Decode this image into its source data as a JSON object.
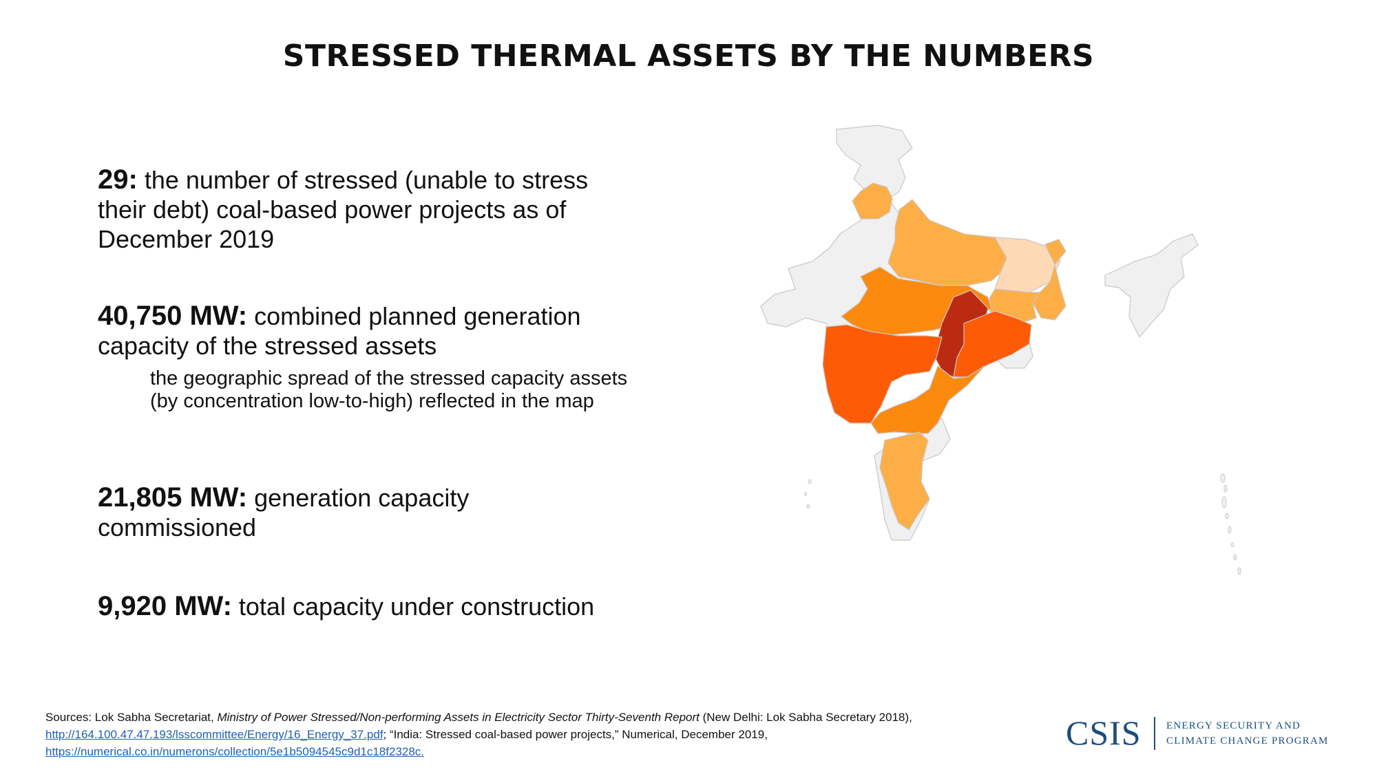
{
  "title": "STRESSED THERMAL ASSETS BY THE NUMBERS",
  "stats": [
    {
      "value": "29:",
      "text": " the number of stressed (unable to stress their debt) coal-based power projects as of December 2019"
    },
    {
      "value": "40,750 MW:",
      "text": " combined planned generation capacity of the stressed assets",
      "note": "the geographic spread of the stressed capacity assets (by concentration low-to-high) reflected in the map"
    },
    {
      "value": "21,805 MW:",
      "text": " generation capacity commissioned"
    },
    {
      "value": "9,920 MW:",
      "text": " total capacity under construction"
    }
  ],
  "map": {
    "colors": {
      "none": "#f0f0f0",
      "low": "#fdd9b5",
      "medium": "#fdae47",
      "high": "#fb8a0f",
      "very_high": "#fe5b06",
      "highest": "#bd2a12",
      "border": "#c8c8c8"
    },
    "regions": [
      {
        "name": "Punjab",
        "level": "medium"
      },
      {
        "name": "Uttar Pradesh",
        "level": "medium"
      },
      {
        "name": "Bihar",
        "level": "low"
      },
      {
        "name": "West Bengal",
        "level": "medium"
      },
      {
        "name": "Jharkhand",
        "level": "medium"
      },
      {
        "name": "Madhya Pradesh",
        "level": "high"
      },
      {
        "name": "Chhattisgarh",
        "level": "highest"
      },
      {
        "name": "Odisha",
        "level": "very_high"
      },
      {
        "name": "Maharashtra",
        "level": "very_high"
      },
      {
        "name": "Andhra Pradesh",
        "level": "high"
      },
      {
        "name": "Tamil Nadu",
        "level": "medium"
      }
    ]
  },
  "sources": {
    "prefix": "Sources: Lok Sabha Secretariat, ",
    "report": "Ministry of Power Stressed/Non-performing Assets in Electricity Sector Thirty-Seventh Report",
    "mid": " (New Delhi: Lok Sabha Secretary 2018), ",
    "link1": "http://164.100.47.47.193/lsscommittee/Energy/16_Energy_37.pdf",
    "mid2": "; “India: Stressed coal-based power projects,” Numerical, December 2019, ",
    "link2": "https://numerical.co.in/numerons/collection/5e1b5094545c9d1c18f2328c."
  },
  "logo": {
    "word": "CSIS",
    "line1": "ENERGY SECURITY AND",
    "line2": "CLIMATE CHANGE PROGRAM"
  }
}
